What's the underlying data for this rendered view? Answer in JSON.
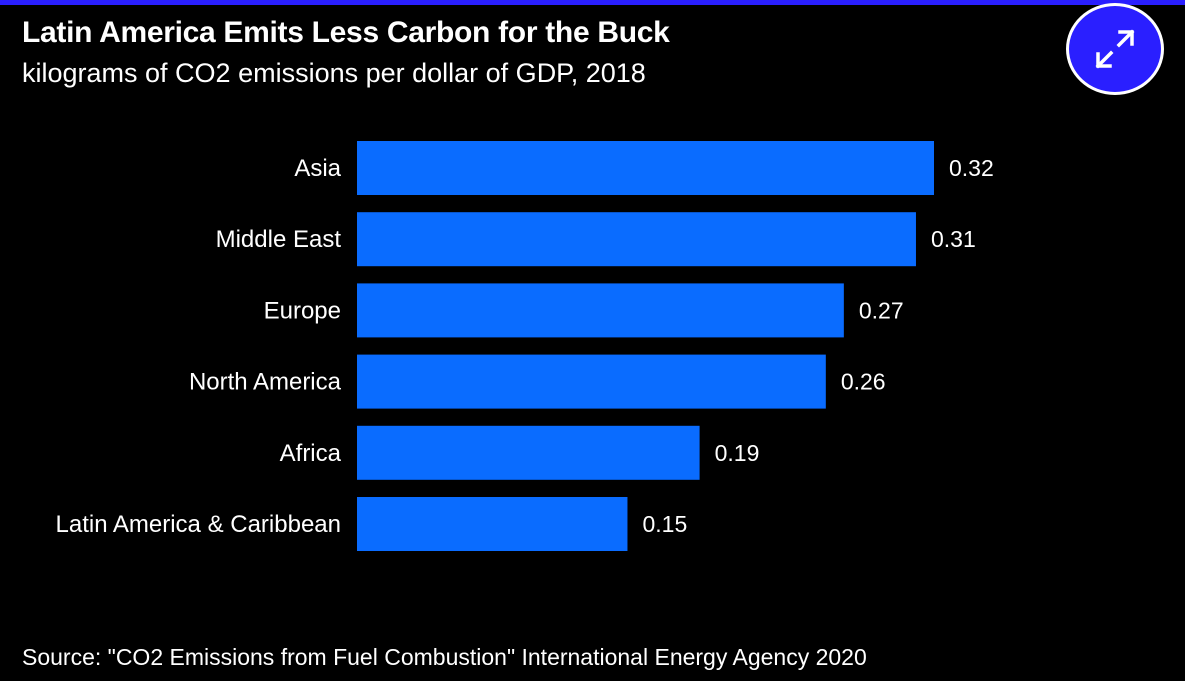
{
  "colors": {
    "background": "#000000",
    "bar": "#0a6cff",
    "accent": "#2a1fff",
    "text": "#ffffff"
  },
  "header": {
    "title": "Latin America Emits Less Carbon for the Buck",
    "subtitle": "kilograms of CO2 emissions per dollar of GDP, 2018"
  },
  "expand_button": {
    "icon": "expand-arrows-icon"
  },
  "footer": {
    "source": "Source: \"CO2 Emissions from Fuel Combustion\" International Energy Agency 2020"
  },
  "chart_data": {
    "type": "bar",
    "orientation": "horizontal",
    "title": "Latin America Emits Less Carbon for the Buck",
    "subtitle": "kilograms of CO2 emissions per dollar of GDP, 2018",
    "xlabel": "",
    "ylabel": "",
    "categories": [
      "Asia",
      "Middle East",
      "Europe",
      "North America",
      "Africa",
      "Latin America & Caribbean"
    ],
    "values": [
      0.32,
      0.31,
      0.27,
      0.26,
      0.19,
      0.15
    ],
    "value_labels": [
      "0.32",
      "0.31",
      "0.27",
      "0.26",
      "0.19",
      "0.15"
    ],
    "xlim": [
      0,
      0.32
    ],
    "grid": false,
    "legend": "none"
  }
}
